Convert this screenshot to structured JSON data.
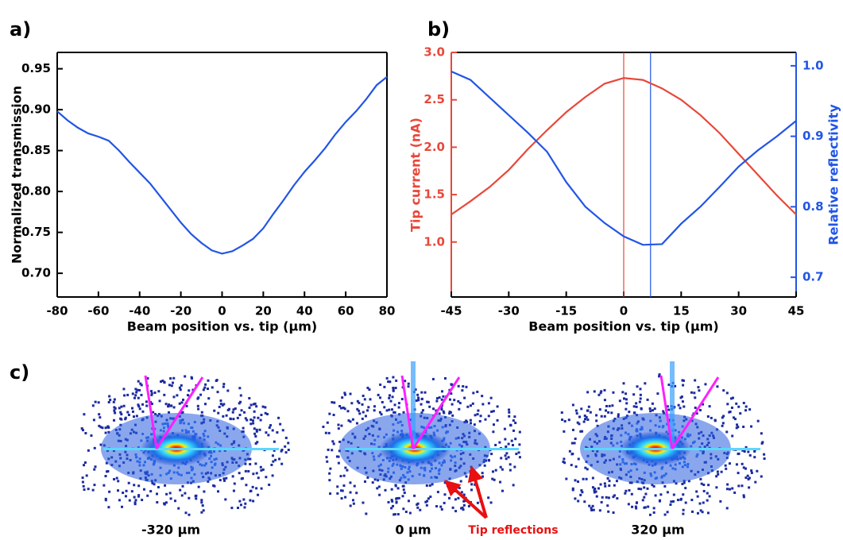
{
  "chart_data": [
    {
      "type": "line",
      "panel_label": "a)",
      "xlabel": "Beam position vs. tip (μm)",
      "ylabel": "Normalized transmission",
      "x": [
        -80,
        -75,
        -70,
        -65,
        -60,
        -55,
        -50,
        -45,
        -40,
        -35,
        -30,
        -25,
        -20,
        -15,
        -10,
        -5,
        0,
        5,
        10,
        15,
        20,
        25,
        30,
        35,
        40,
        45,
        50,
        55,
        60,
        65,
        70,
        75,
        80
      ],
      "xlim": [
        -80,
        80
      ],
      "xticks": [
        -80,
        -60,
        -40,
        -20,
        0,
        20,
        40,
        60,
        80
      ],
      "ylim": [
        0.671,
        0.97
      ],
      "yticks": [
        {
          "value": 0.7,
          "label": "0.70"
        },
        0.75,
        {
          "value": 0.8,
          "label": "0.80"
        },
        0.85,
        {
          "value": 0.9,
          "label": "0.90"
        },
        0.95
      ],
      "series": [
        {
          "color": "#2255e6",
          "values": [
            0.898,
            0.887,
            0.878,
            0.871,
            0.867,
            0.862,
            0.85,
            0.836,
            0.823,
            0.81,
            0.794,
            0.778,
            0.762,
            0.748,
            0.737,
            0.728,
            0.724,
            0.727,
            0.734,
            0.742,
            0.755,
            0.773,
            0.79,
            0.808,
            0.824,
            0.838,
            0.853,
            0.87,
            0.885,
            0.898,
            0.913,
            0.93,
            0.94
          ]
        }
      ]
    },
    {
      "type": "line",
      "panel_label": "b)",
      "xlabel": "Beam position vs. tip (μm)",
      "ylabel": "Tip current (nA)",
      "y2label": "Relative reflectivity",
      "x": [
        -45,
        -40,
        -35,
        -30,
        -25,
        -20,
        -15,
        -10,
        -5,
        0,
        5,
        10,
        15,
        20,
        25,
        30,
        35,
        40,
        45
      ],
      "xlim": [
        -45,
        45
      ],
      "xticks": [
        -45,
        -30,
        -15,
        0,
        15,
        30,
        45
      ],
      "ylim": [
        0.42,
        3.0
      ],
      "yticks": [
        {
          "value": 1,
          "label": "1.0"
        },
        1.5,
        {
          "value": 2,
          "label": "2.0"
        },
        2.5,
        {
          "value": 3,
          "label": "3.0"
        }
      ],
      "y2lim": [
        0.672,
        1.019
      ],
      "y2ticks": [
        0.7,
        0.8,
        0.9,
        {
          "value": 1,
          "label": "1.0"
        }
      ],
      "markers": [
        {
          "x": 0,
          "color": "#e8483a"
        },
        {
          "x": 7,
          "color": "#2255e6"
        }
      ],
      "series": [
        {
          "color": "#e8483a",
          "values": [
            1.29,
            1.43,
            1.58,
            1.76,
            1.98,
            2.18,
            2.37,
            2.53,
            2.67,
            2.73,
            2.71,
            2.62,
            2.5,
            2.34,
            2.15,
            1.93,
            1.71,
            1.49,
            1.29
          ]
        },
        {
          "color": "#2255e6",
          "axis": "y2",
          "values": [
            0.992,
            0.98,
            0.955,
            0.93,
            0.905,
            0.878,
            0.835,
            0.8,
            0.777,
            0.758,
            0.746,
            0.747,
            0.776,
            0.8,
            0.828,
            0.857,
            0.88,
            0.9,
            0.922
          ]
        }
      ]
    }
  ],
  "images": {
    "panel_label": "c)",
    "captions": [
      "-320 μm",
      "0 μm",
      "320 μm"
    ],
    "annotation": "Tip reflections"
  }
}
